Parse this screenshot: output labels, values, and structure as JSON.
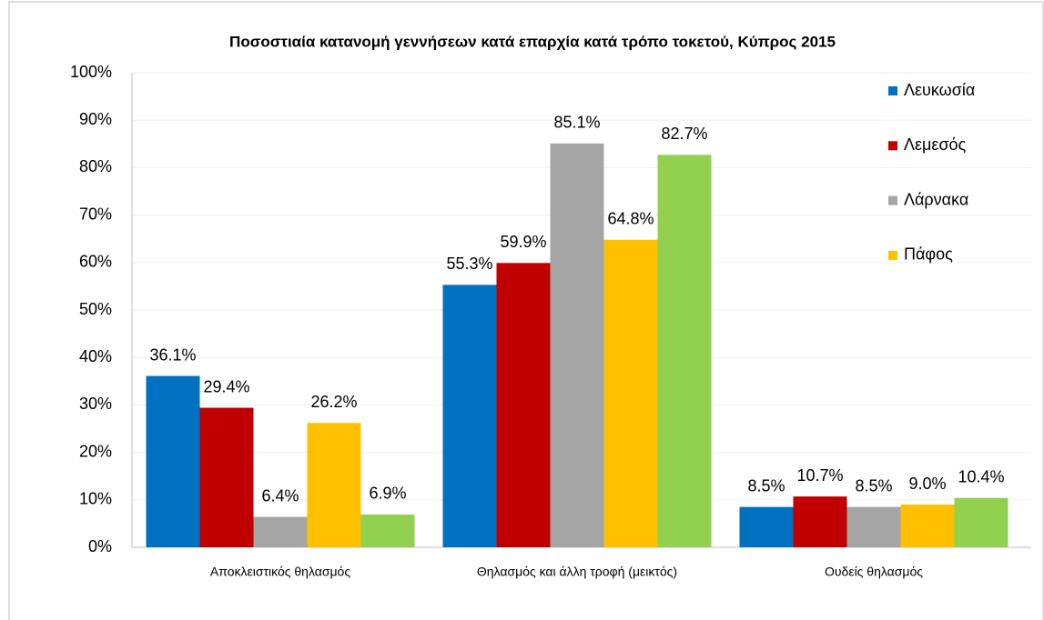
{
  "chart_data": {
    "type": "bar",
    "title": "Ποσοστιαία κατανομή γεννήσεων κατά επαρχία κατά τρόπο τοκετού, Κύπρος 2015",
    "categories": [
      "Αποκλειστικός θηλασμός",
      "Θηλασμός και άλλη τροφή (μεικτός)",
      "Ουδείς θηλασμός"
    ],
    "series": [
      {
        "name": "Λευκωσία",
        "color": "#0070c0",
        "values": [
          36.1,
          55.3,
          8.5
        ],
        "value_labels": [
          "36.1%",
          "55.3%",
          "8.5%"
        ]
      },
      {
        "name": "Λεμεσός",
        "color": "#c00000",
        "values": [
          29.4,
          59.9,
          10.7
        ],
        "value_labels": [
          "29.4%",
          "59.9%",
          "10.7%"
        ]
      },
      {
        "name": "Λάρνακα",
        "color": "#a5a5a5",
        "values": [
          6.4,
          85.1,
          8.5
        ],
        "value_labels": [
          "6.4%",
          "85.1%",
          "8.5%"
        ]
      },
      {
        "name": "Πάφος",
        "color": "#ffc000",
        "values": [
          26.2,
          64.8,
          9.0
        ],
        "value_labels": [
          "26.2%",
          "64.8%",
          "9.0%"
        ]
      },
      {
        "color": "#92d050",
        "values": [
          6.9,
          82.7,
          10.4
        ],
        "value_labels": [
          "6.9%",
          "82.7%",
          "10.4%"
        ]
      }
    ],
    "ylim": [
      0,
      100
    ],
    "yticks": [
      {
        "value": 0,
        "label": "0%"
      },
      {
        "value": 10,
        "label": "10%"
      },
      {
        "value": 20,
        "label": "20%"
      },
      {
        "value": 30,
        "label": "30%"
      },
      {
        "value": 40,
        "label": "40%"
      },
      {
        "value": 50,
        "label": "50%"
      },
      {
        "value": 60,
        "label": "60%"
      },
      {
        "value": 70,
        "label": "70%"
      },
      {
        "value": 80,
        "label": "80%"
      },
      {
        "value": 90,
        "label": "90%"
      },
      {
        "value": 100,
        "label": "100%"
      }
    ],
    "grid": true,
    "legend": "top-right"
  }
}
